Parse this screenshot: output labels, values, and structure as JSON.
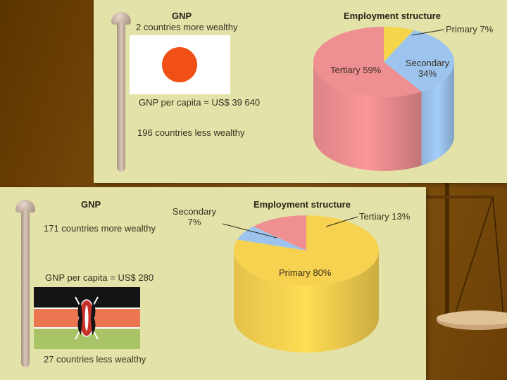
{
  "chart_data": [
    {
      "type": "pie",
      "country": "Japan",
      "gnp_heading": "GNP",
      "more_wealthy_label": "2 countries more wealthy",
      "gnp_per_capita_label": "GNP per capita = US$ 39 640",
      "less_wealthy_label": "196 countries less wealthy",
      "title": "Employment structure",
      "slices": [
        {
          "label": "Primary 7%",
          "value": 7,
          "color": "#f5d54a"
        },
        {
          "label": "Secondary 34%",
          "value": 34,
          "color": "#9cc4ef"
        },
        {
          "label": "Tertiary 59%",
          "value": 59,
          "color": "#ef8f92"
        }
      ]
    },
    {
      "type": "pie",
      "country": "Kenya",
      "gnp_heading": "GNP",
      "more_wealthy_label": "171 countries more wealthy",
      "gnp_per_capita_label": "GNP per capita = US$ 280",
      "less_wealthy_label": "27 countries less wealthy",
      "title": "Employment structure",
      "slices": [
        {
          "label": "Primary 80%",
          "value": 80,
          "color": "#f7d250"
        },
        {
          "label": "Secondary 7%",
          "value": 7,
          "color": "#9cc4ef"
        },
        {
          "label": "Tertiary 13%",
          "value": 13,
          "color": "#ef8f92"
        }
      ]
    }
  ]
}
